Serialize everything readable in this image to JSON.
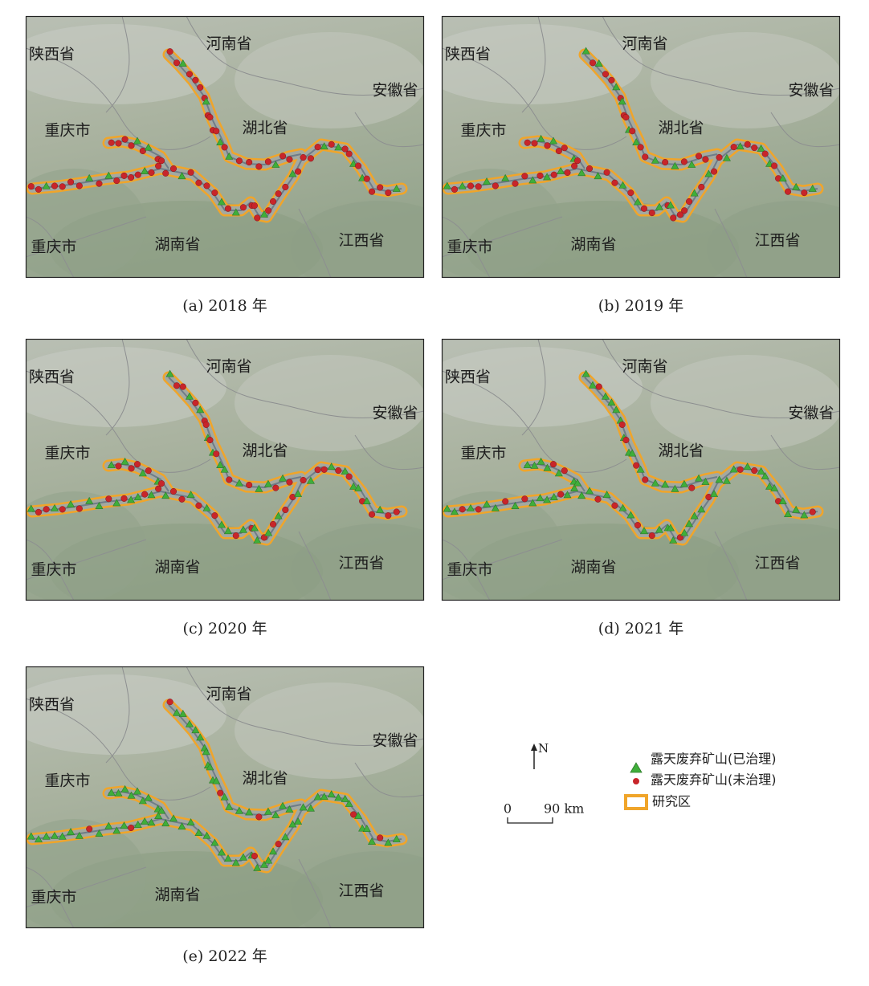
{
  "panels": [
    {
      "caption": "(a) 2018 年",
      "labels": [
        "陕西省",
        "河南省",
        "安徽省",
        "重庆市",
        "湖北省",
        "重庆市",
        "湖南省",
        "江西省"
      ]
    },
    {
      "caption": "(b) 2019 年",
      "labels": [
        "陕西省",
        "河南省",
        "安徽省",
        "重庆市",
        "湖北省",
        "重庆市",
        "湖南省",
        "江西省"
      ]
    },
    {
      "caption": "(c) 2020 年",
      "labels": [
        "陕西省",
        "河南省",
        "安徽省",
        "重庆市",
        "湖北省",
        "重庆市",
        "湖南省",
        "江西省"
      ]
    },
    {
      "caption": "(d) 2021 年",
      "labels": [
        "陕西省",
        "河南省",
        "安徽省",
        "重庆市",
        "湖北省",
        "重庆市",
        "湖南省",
        "江西省"
      ]
    },
    {
      "caption": "(e) 2022 年",
      "labels": [
        "陕西省",
        "河南省",
        "安徽省",
        "重庆市",
        "湖北省",
        "重庆市",
        "湖南省",
        "江西省"
      ]
    }
  ],
  "legend": {
    "items": [
      "露天废弃矿山(已治理)",
      "露天废弃矿山(未治理)",
      "研究区"
    ]
  },
  "north": "N",
  "scale": {
    "start": "0",
    "end": "90 km"
  }
}
